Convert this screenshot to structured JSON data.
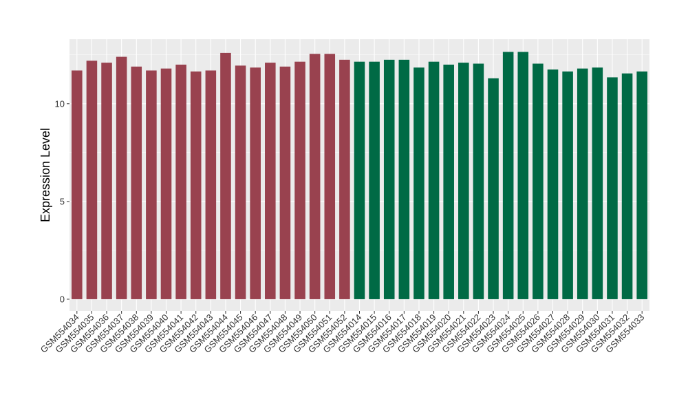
{
  "chart_data": {
    "type": "bar",
    "title": "",
    "xlabel": "",
    "ylabel": "Expression Level",
    "ylim": [
      -0.6,
      13.3
    ],
    "yticks": [
      0,
      5,
      10
    ],
    "grid": true,
    "legend": "none",
    "categories": [
      "GSM554034",
      "GSM554035",
      "GSM554036",
      "GSM554037",
      "GSM554038",
      "GSM554039",
      "GSM554040",
      "GSM554041",
      "GSM554042",
      "GSM554043",
      "GSM554044",
      "GSM554045",
      "GSM554046",
      "GSM554047",
      "GSM554048",
      "GSM554049",
      "GSM554050",
      "GSM554051",
      "GSM554052",
      "GSM554014",
      "GSM554015",
      "GSM554016",
      "GSM554017",
      "GSM554018",
      "GSM554019",
      "GSM554020",
      "GSM554021",
      "GSM554022",
      "GSM554023",
      "GSM554024",
      "GSM554025",
      "GSM554026",
      "GSM554027",
      "GSM554028",
      "GSM554029",
      "GSM554030",
      "GSM554031",
      "GSM554032",
      "GSM554033"
    ],
    "values": [
      11.7,
      12.2,
      12.1,
      12.4,
      11.9,
      11.7,
      11.8,
      12.0,
      11.65,
      11.7,
      12.6,
      11.95,
      11.85,
      12.1,
      11.9,
      12.15,
      12.55,
      12.55,
      12.25,
      12.15,
      12.15,
      12.25,
      12.25,
      11.85,
      12.15,
      12.0,
      12.1,
      12.05,
      11.3,
      12.65,
      12.65,
      12.05,
      11.75,
      11.65,
      11.8,
      11.85,
      11.35,
      11.55,
      11.65
    ],
    "group_sizes": [
      19,
      20
    ],
    "colors": [
      "#99424f",
      "#006a45"
    ],
    "panel_background": "#ebebeb",
    "grid_color": "#ffffff"
  }
}
